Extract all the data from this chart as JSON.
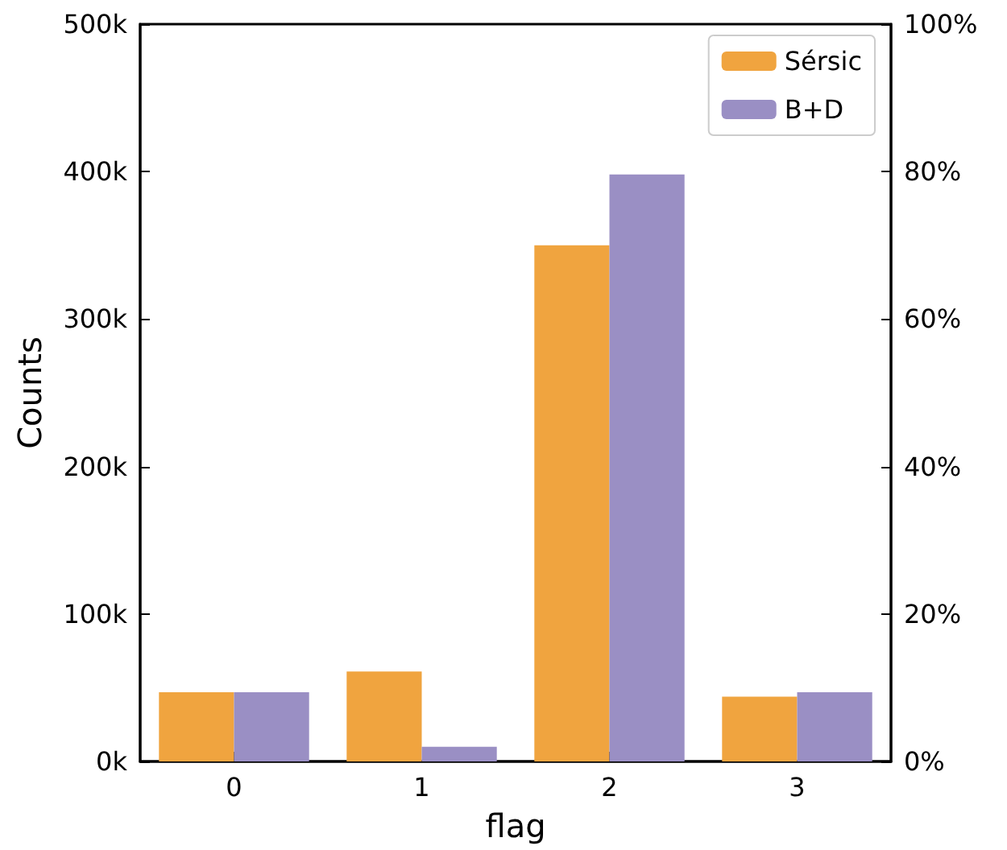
{
  "chart_data": {
    "type": "bar",
    "xlabel": "flag",
    "ylabel": "Counts",
    "categories": [
      "0",
      "1",
      "2",
      "3"
    ],
    "series": [
      {
        "name": "Sérsic",
        "color": "#f0a43f",
        "values": [
          47000,
          61000,
          350000,
          44000
        ]
      },
      {
        "name": "B+D",
        "color": "#9a8fc4",
        "values": [
          47000,
          10000,
          398000,
          47000
        ]
      }
    ],
    "ylim": [
      0,
      500000
    ],
    "yticks": [
      {
        "value": 0,
        "label": "0k"
      },
      {
        "value": 100000,
        "label": "100k"
      },
      {
        "value": 200000,
        "label": "200k"
      },
      {
        "value": 300000,
        "label": "300k"
      },
      {
        "value": 400000,
        "label": "400k"
      },
      {
        "value": 500000,
        "label": "500k"
      }
    ],
    "y2lim": [
      0,
      100
    ],
    "y2ticks": [
      {
        "value": 0,
        "label": "0%"
      },
      {
        "value": 20,
        "label": "20%"
      },
      {
        "value": 40,
        "label": "40%"
      },
      {
        "value": 60,
        "label": "60%"
      },
      {
        "value": 80,
        "label": "80%"
      },
      {
        "value": 100,
        "label": "100%"
      }
    ],
    "legend": "top right",
    "grid": false
  }
}
